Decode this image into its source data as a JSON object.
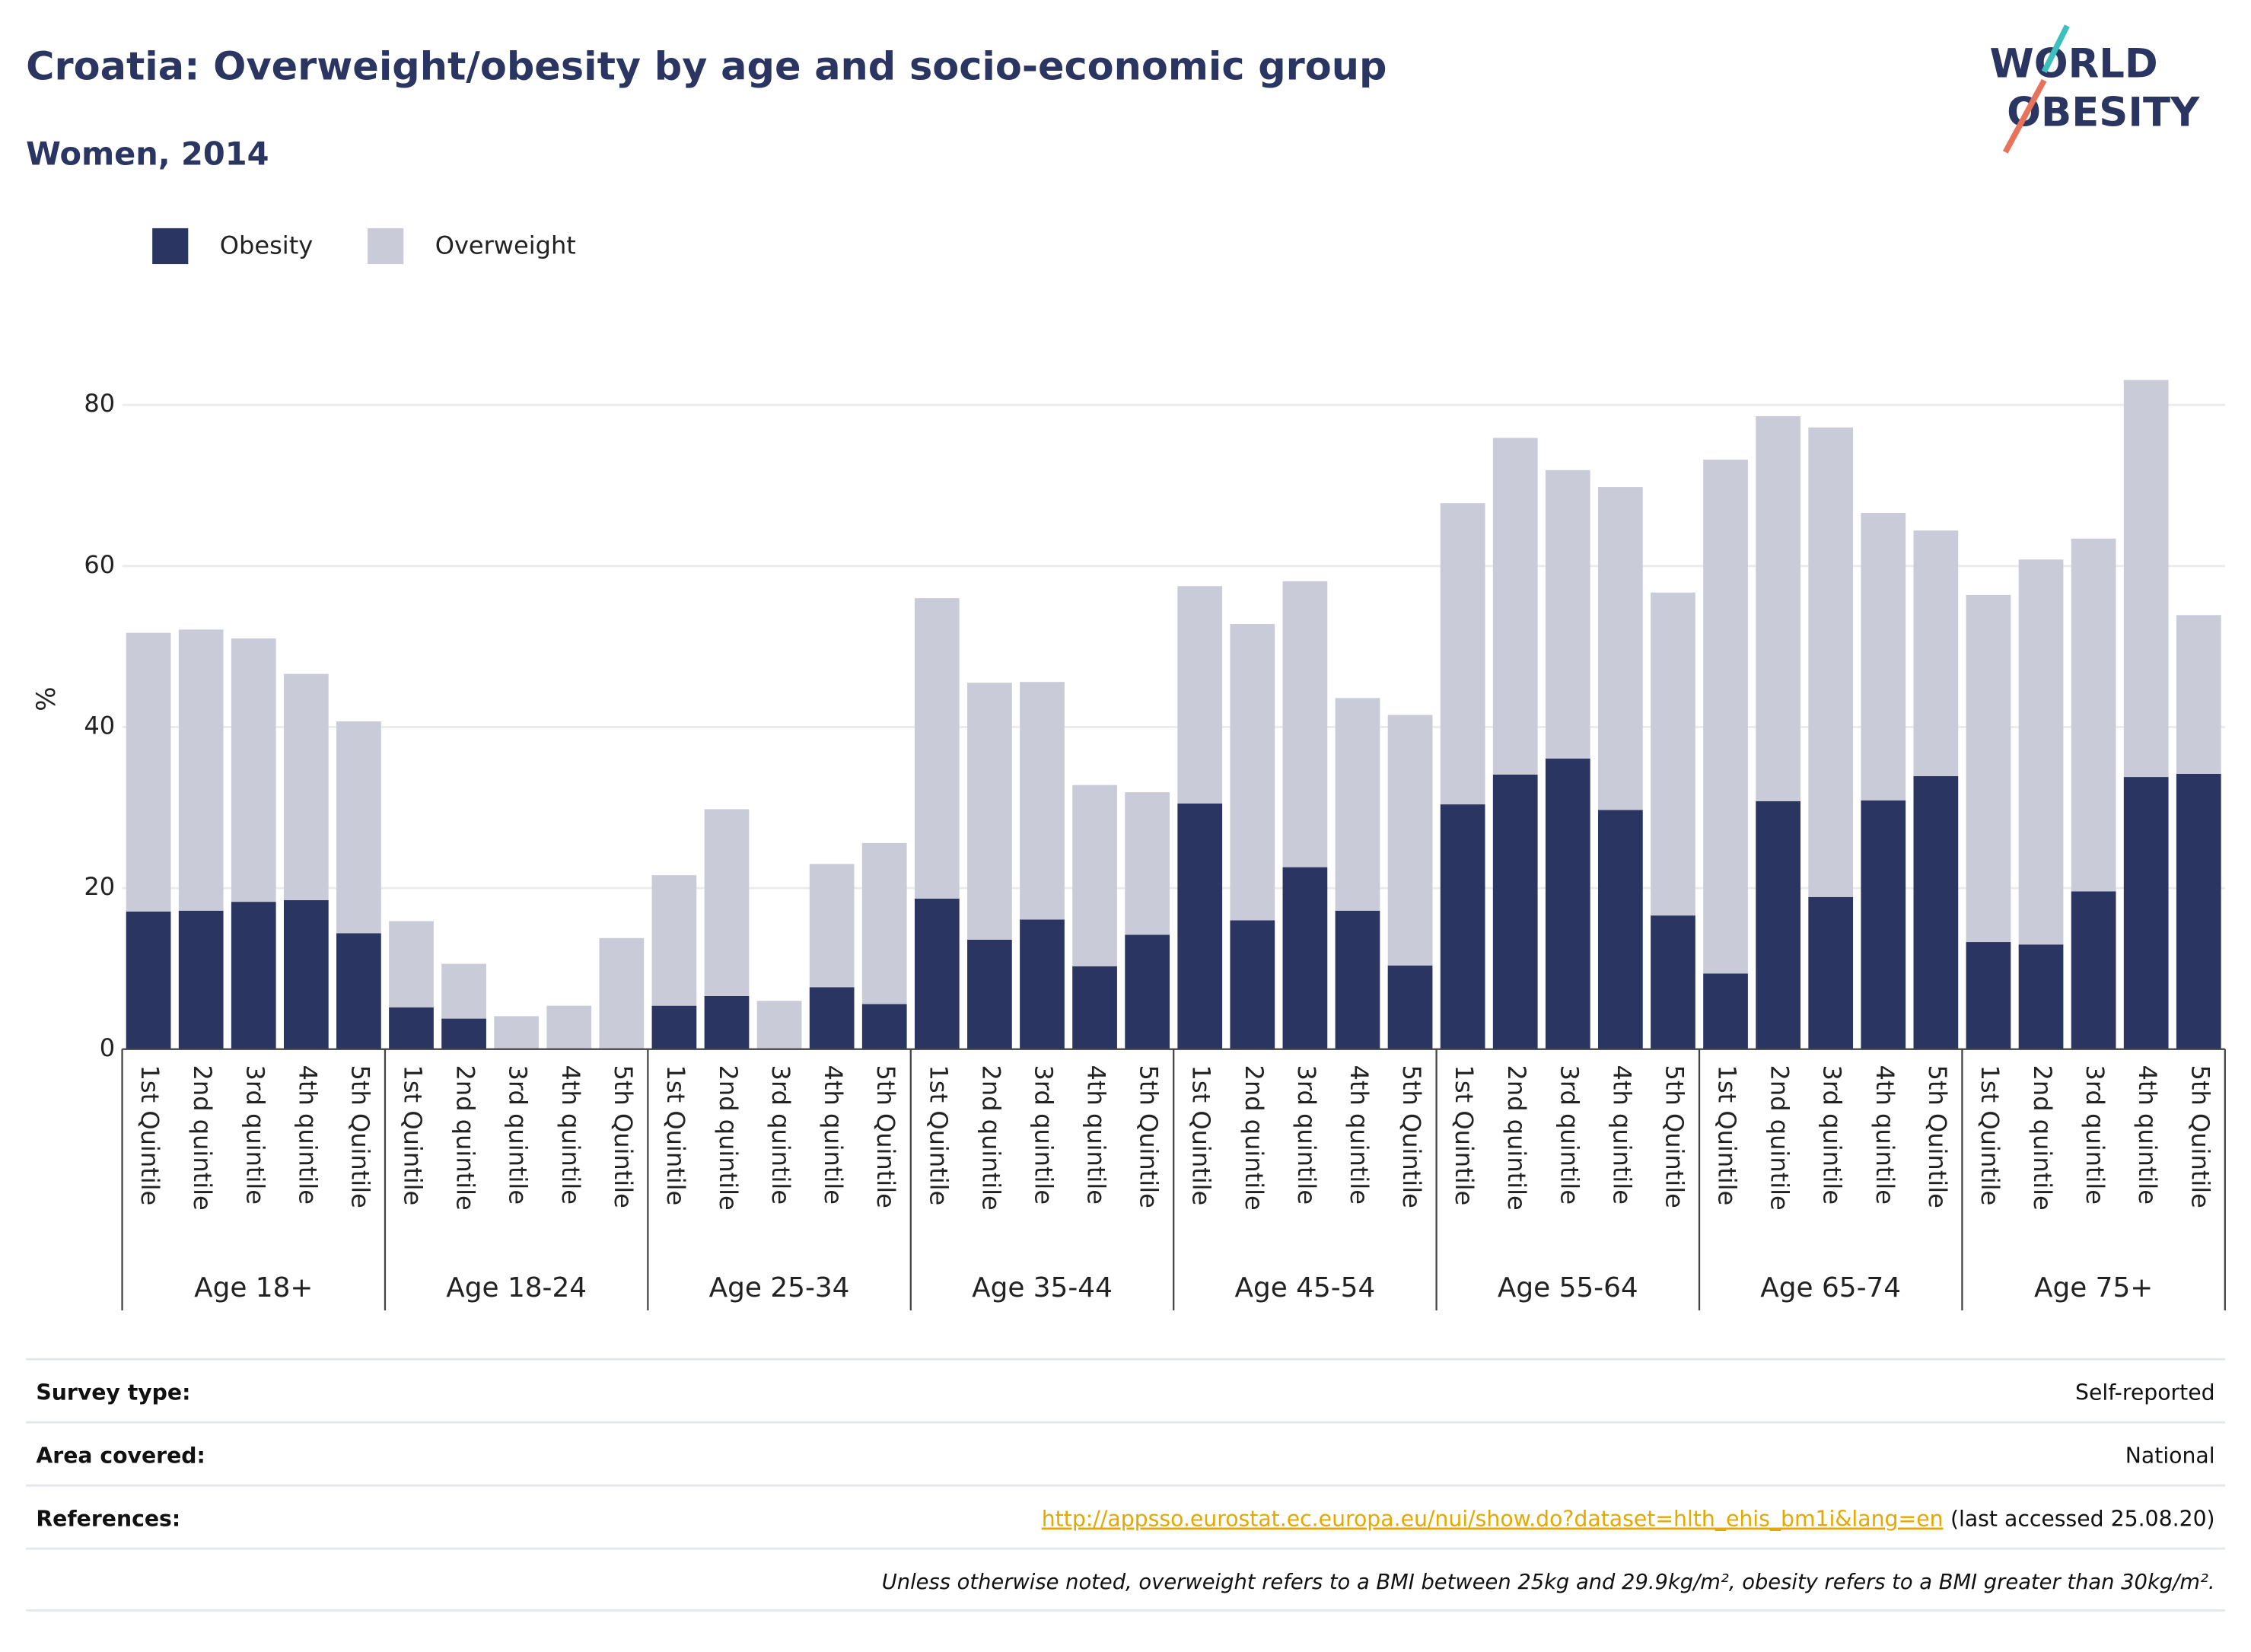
{
  "chart_data": {
    "type": "bar",
    "stacked": true,
    "title": "Croatia: Overweight/obesity by age and socio-economic group",
    "subtitle": "Women, 2014",
    "logo": [
      "WORLD",
      "OBESITY"
    ],
    "ylabel": "%",
    "ylim": [
      0,
      90
    ],
    "yticks": [
      0,
      20,
      40,
      60,
      80
    ],
    "grid": true,
    "groups": [
      {
        "name": "Age 18+",
        "categories": [
          "1st Quintile",
          "2nd quintile",
          "3rd quintile",
          "4th quintile",
          "5th Quintile"
        ]
      },
      {
        "name": "Age 18-24",
        "categories": [
          "1st Quintile",
          "2nd quintile",
          "3rd quintile",
          "4th quintile",
          "5th Quintile"
        ]
      },
      {
        "name": "Age 25-34",
        "categories": [
          "1st Quintile",
          "2nd quintile",
          "3rd quintile",
          "4th quintile",
          "5th Quintile"
        ]
      },
      {
        "name": "Age 35-44",
        "categories": [
          "1st Quintile",
          "2nd quintile",
          "3rd quintile",
          "4th quintile",
          "5th Quintile"
        ]
      },
      {
        "name": "Age 45-54",
        "categories": [
          "1st Quintile",
          "2nd quintile",
          "3rd quintile",
          "4th quintile",
          "5th Quintile"
        ]
      },
      {
        "name": "Age 55-64",
        "categories": [
          "1st Quintile",
          "2nd quintile",
          "3rd quintile",
          "4th quintile",
          "5th Quintile"
        ]
      },
      {
        "name": "Age 65-74",
        "categories": [
          "1st Quintile",
          "2nd quintile",
          "3rd quintile",
          "4th quintile",
          "5th Quintile"
        ]
      },
      {
        "name": "Age 75+",
        "categories": [
          "1st Quintile",
          "2nd quintile",
          "3rd quintile",
          "4th quintile",
          "5th Quintile"
        ]
      }
    ],
    "series": [
      {
        "name": "Obesity",
        "color": "#2a3561",
        "values": [
          17.1,
          17.2,
          18.3,
          18.5,
          14.4,
          5.2,
          3.8,
          null,
          null,
          null,
          5.4,
          6.6,
          null,
          7.7,
          5.6,
          18.7,
          13.6,
          16.1,
          10.3,
          14.2,
          30.5,
          16.0,
          22.6,
          17.2,
          10.4,
          30.4,
          34.1,
          36.1,
          29.7,
          16.6,
          9.4,
          30.8,
          18.9,
          30.9,
          33.9,
          13.3,
          13.0,
          19.6,
          33.8,
          34.2
        ]
      },
      {
        "name": "Overweight",
        "color": "#c9cbd8",
        "values": [
          34.6,
          34.9,
          32.7,
          28.1,
          26.3,
          10.7,
          6.8,
          4.1,
          5.4,
          13.8,
          16.2,
          23.2,
          6.0,
          15.3,
          20.0,
          37.3,
          31.9,
          29.5,
          22.5,
          17.7,
          27.0,
          36.8,
          35.5,
          26.4,
          31.1,
          37.4,
          41.8,
          35.8,
          40.1,
          40.1,
          63.8,
          47.8,
          58.3,
          35.7,
          30.5,
          43.1,
          47.8,
          43.8,
          49.3,
          19.7
        ]
      }
    ]
  },
  "footer": {
    "rows": [
      {
        "label": "Survey type:",
        "value": "Self-reported"
      },
      {
        "label": "Area covered:",
        "value": "National"
      }
    ],
    "references": {
      "label": "References:",
      "link": "http://appsso.eurostat.ec.europa.eu/nui/show.do?dataset=hlth_ehis_bm1i&lang=en",
      "note": "(last accessed 25.08.20)"
    },
    "footnote": "Unless otherwise noted, overweight refers to a BMI between 25kg and 29.9kg/m², obesity refers to a BMI greater than 30kg/m²."
  }
}
